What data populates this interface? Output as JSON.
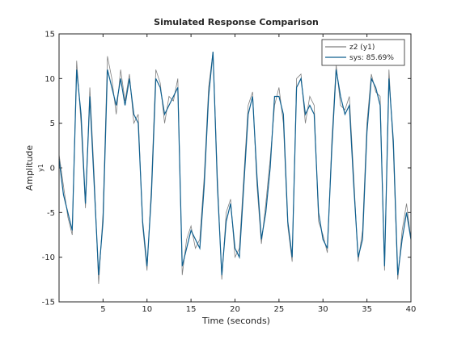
{
  "chart_data": {
    "type": "line",
    "title": "Simulated Response Comparison",
    "xlabel": "Time (seconds)",
    "ylabel": "Amplitude",
    "ysublabel": "y1",
    "x": [
      0,
      0.5,
      1,
      1.5,
      2,
      2.5,
      3,
      3.5,
      4,
      4.5,
      5,
      5.5,
      6,
      6.5,
      7,
      7.5,
      8,
      8.5,
      9,
      9.5,
      10,
      10.5,
      11,
      11.5,
      12,
      12.5,
      13,
      13.5,
      14,
      14.5,
      15,
      15.5,
      16,
      16.5,
      17,
      17.5,
      18,
      18.5,
      19,
      19.5,
      20,
      20.5,
      21,
      21.5,
      22,
      22.5,
      23,
      23.5,
      24,
      24.5,
      25,
      25.5,
      26,
      26.5,
      27,
      27.5,
      28,
      28.5,
      29,
      29.5,
      30,
      30.5,
      31,
      31.5,
      32,
      32.5,
      33,
      33.5,
      34,
      34.5,
      35,
      35.5,
      36,
      36.5,
      37,
      37.5,
      38,
      38.5,
      39,
      39.5,
      40
    ],
    "series": [
      {
        "name": "z2 (y1)",
        "color": "#7f7f7f",
        "values": [
          1.5,
          -2,
          -5.5,
          -7.5,
          12,
          5,
          -4.5,
          9,
          -1,
          -13,
          -5,
          12.5,
          10,
          6,
          11,
          7.5,
          10.5,
          5,
          6,
          -6.5,
          -11.5,
          -2,
          11,
          9.5,
          5,
          8,
          7.5,
          10,
          -12,
          -8,
          -6.5,
          -9,
          -8,
          -1,
          9,
          13,
          -1,
          -12.5,
          -5,
          -3.5,
          -10,
          -9,
          -1,
          7,
          8.5,
          -2,
          -8.5,
          -4,
          1,
          7,
          9,
          5,
          -6.5,
          -10.5,
          10,
          10.5,
          5,
          8,
          7,
          -6,
          -7.5,
          -9.5,
          3,
          11.5,
          7,
          6.5,
          8,
          -1,
          -10.5,
          -7,
          5,
          10.5,
          8.5,
          8,
          -11.5,
          11,
          2,
          -12.5,
          -7,
          -4,
          -8
        ]
      },
      {
        "name": "sys: 85.69%",
        "color": "#0e5f8f",
        "values": [
          1,
          -3,
          -5,
          -7,
          11,
          6,
          -4,
          8,
          -2,
          -12,
          -6,
          11,
          9,
          7,
          10,
          7,
          10,
          6,
          5,
          -6,
          -11,
          -3,
          10,
          9,
          6,
          7,
          8,
          9,
          -11,
          -9,
          -7,
          -8,
          -9,
          -2,
          8,
          13,
          -2,
          -12,
          -6,
          -4,
          -9,
          -10,
          -2,
          6,
          8,
          -1,
          -8,
          -5,
          0,
          8,
          8,
          6,
          -6,
          -10,
          9,
          10,
          6,
          7,
          6,
          -5,
          -8,
          -9,
          2,
          11,
          8,
          6,
          7,
          -2,
          -10,
          -8,
          4,
          10,
          9,
          7,
          -11,
          10,
          3,
          -12,
          -8,
          -5,
          -8
        ]
      }
    ],
    "xlim": [
      0,
      40
    ],
    "xticks": [
      5,
      10,
      15,
      20,
      25,
      30,
      35,
      40
    ],
    "ylim": [
      -15,
      15
    ],
    "yticks": [
      -15,
      -10,
      -5,
      0,
      5,
      10,
      15
    ],
    "legend": "upper right"
  }
}
